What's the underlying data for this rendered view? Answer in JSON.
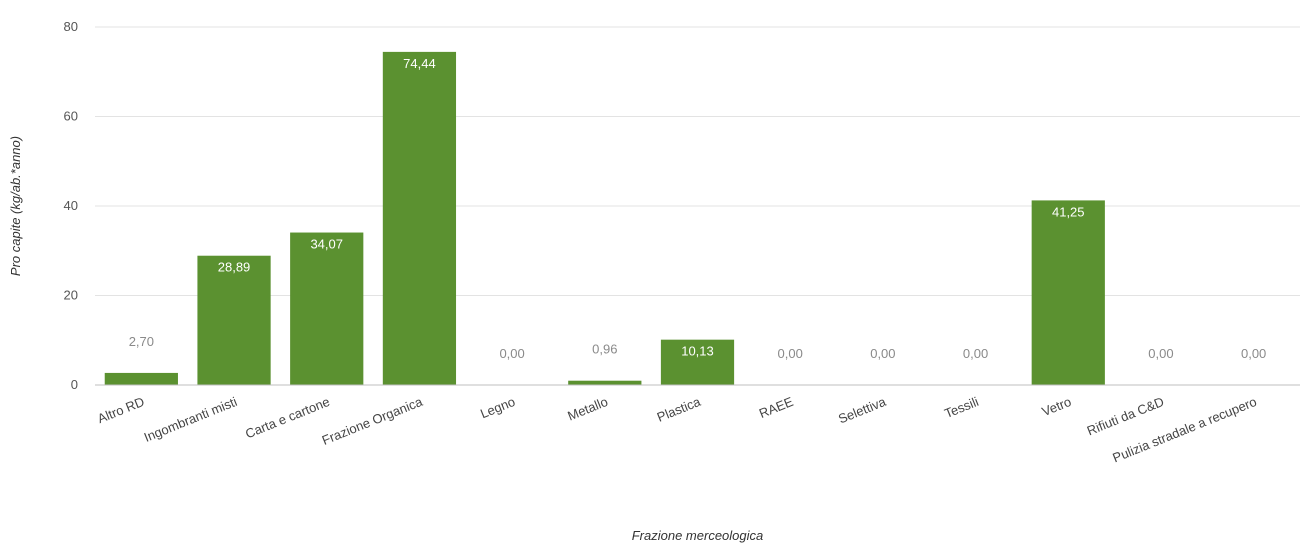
{
  "chart_data": {
    "type": "bar",
    "xlabel": "Frazione merceologica",
    "ylabel": "Pro capite (kg/ab.*anno)",
    "ylim": [
      0,
      80
    ],
    "yticks": [
      0,
      20,
      40,
      60,
      80
    ],
    "grid": true,
    "bar_color": "#5b9130",
    "categories": [
      "Altro RD",
      "Ingombranti misti",
      "Carta e cartone",
      "Frazione Organica",
      "Legno",
      "Metallo",
      "Plastica",
      "RAEE",
      "Selettiva",
      "Tessili",
      "Vetro",
      "Rifiuti da C&D",
      "Pulizia stradale a recupero"
    ],
    "values": [
      2.7,
      28.89,
      34.07,
      74.44,
      0.0,
      0.96,
      10.13,
      0.0,
      0.0,
      0.0,
      41.25,
      0.0,
      0.0
    ],
    "data_labels": [
      "2,70",
      "28,89",
      "34,07",
      "74,44",
      "0,00",
      "0,96",
      "10,13",
      "0,00",
      "0,00",
      "0,00",
      "41,25",
      "0,00",
      "0,00"
    ]
  }
}
